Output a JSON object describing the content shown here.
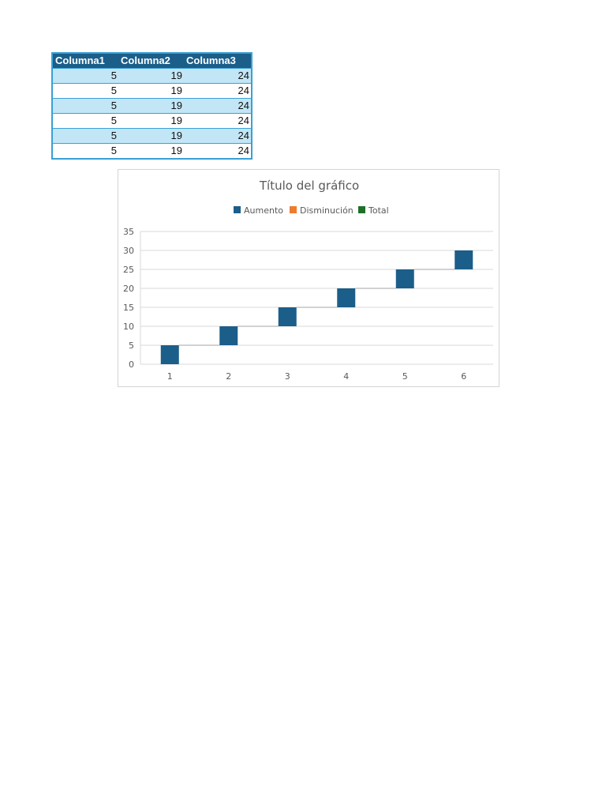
{
  "table": {
    "headers": [
      "Columna1",
      "Columna2",
      "Columna3"
    ],
    "rows": [
      [
        "5",
        "19",
        "24"
      ],
      [
        "5",
        "19",
        "24"
      ],
      [
        "5",
        "19",
        "24"
      ],
      [
        "5",
        "19",
        "24"
      ],
      [
        "5",
        "19",
        "24"
      ],
      [
        "5",
        "19",
        "24"
      ]
    ],
    "band_color": "#c3e6f6",
    "header_color": "#1b5e8a",
    "border_color": "#3aa0d6"
  },
  "chart_data": {
    "type": "waterfall",
    "title": "Título del gráfico",
    "legend": [
      {
        "name": "Aumento",
        "color": "#1b5e8a"
      },
      {
        "name": "Disminución",
        "color": "#ee7b30"
      },
      {
        "name": "Total",
        "color": "#1e6f27"
      }
    ],
    "legend_position": "top",
    "categories": [
      "1",
      "2",
      "3",
      "4",
      "5",
      "6"
    ],
    "values": [
      5,
      5,
      5,
      5,
      5,
      5
    ],
    "ylim": [
      0,
      35
    ],
    "yticks": [
      "0",
      "5",
      "10",
      "15",
      "20",
      "25",
      "30",
      "35"
    ],
    "grid": true,
    "xlabel": "",
    "ylabel": ""
  }
}
